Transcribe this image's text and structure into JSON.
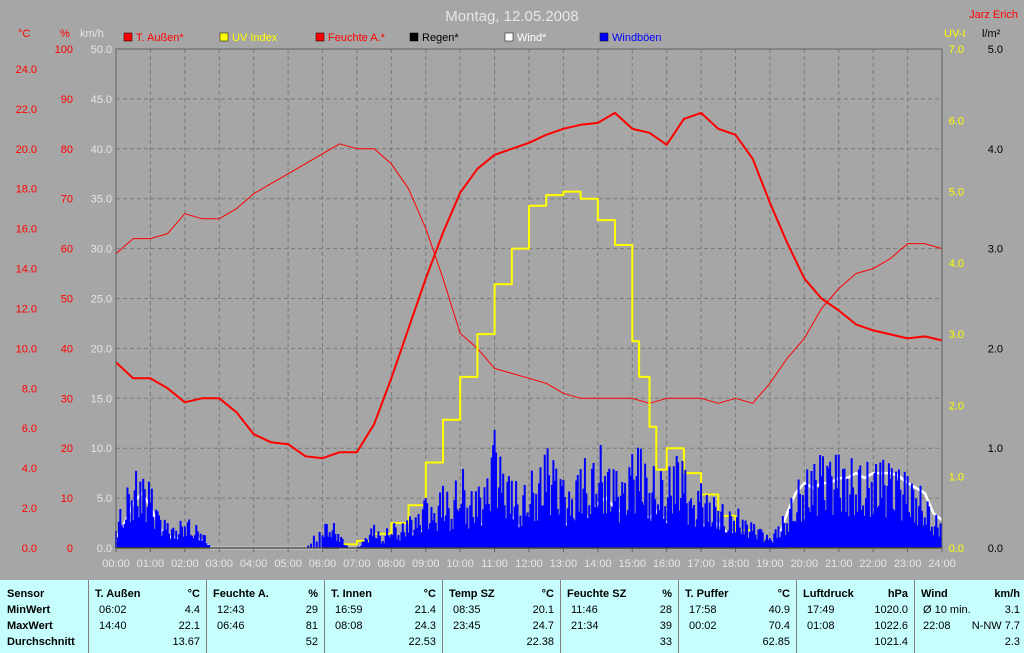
{
  "header": {
    "date_title": "Montag, 12.05.2008",
    "author": "Jarz Erich"
  },
  "axis_units": {
    "temp": "°C",
    "humidity": "%",
    "wind": "km/h",
    "uv": "UV-I",
    "rain": "l/m²"
  },
  "colors": {
    "temp": "#ff0000",
    "humidity": "#ff0000",
    "uv": "#ffff00",
    "rain": "#000000",
    "wind": "#ffffff",
    "gust": "#0000ff",
    "plot_bg": "#a6a6a6",
    "grid": "#7a7a7a",
    "stats_bg": "#c6fdfd"
  },
  "chart_data": {
    "type": "line",
    "title": "Montag, 12.05.2008",
    "x_ticks": [
      "00:00",
      "01:00",
      "02:00",
      "03:00",
      "04:00",
      "05:00",
      "06:00",
      "07:00",
      "08:00",
      "09:00",
      "10:00",
      "11:00",
      "12:00",
      "13:00",
      "14:00",
      "15:00",
      "16:00",
      "17:00",
      "18:00",
      "19:00",
      "20:00",
      "21:00",
      "22:00",
      "23:00",
      "24:00"
    ],
    "axes": {
      "temp": {
        "unit": "°C",
        "range": [
          0,
          25
        ],
        "ticks": [
          "0.0",
          "2.0",
          "4.0",
          "6.0",
          "8.0",
          "10.0",
          "12.0",
          "14.0",
          "16.0",
          "18.0",
          "20.0",
          "22.0",
          "24.0"
        ]
      },
      "humidity": {
        "unit": "%",
        "range": [
          0,
          100
        ],
        "ticks": [
          "0",
          "10",
          "20",
          "30",
          "40",
          "50",
          "60",
          "70",
          "80",
          "90",
          "100"
        ]
      },
      "wind": {
        "unit": "km/h",
        "range": [
          0,
          50
        ],
        "ticks": [
          "0.0",
          "5.0",
          "10.0",
          "15.0",
          "20.0",
          "25.0",
          "30.0",
          "35.0",
          "40.0",
          "45.0",
          "50.0"
        ]
      },
      "uv": {
        "unit": "UV-I",
        "range": [
          0,
          7
        ],
        "ticks": [
          "0.0",
          "1.0",
          "2.0",
          "3.0",
          "4.0",
          "5.0",
          "6.0",
          "7.0"
        ]
      },
      "rain": {
        "unit": "l/m²",
        "range": [
          0,
          5
        ],
        "ticks": [
          "0.0",
          "1.0",
          "2.0",
          "3.0",
          "4.0",
          "5.0"
        ]
      }
    },
    "legend": [
      {
        "label": "T. Außen*",
        "color": "#ff0000"
      },
      {
        "label": "UV Index",
        "color": "#ffff00"
      },
      {
        "label": "Feuchte A.*",
        "color": "#ff0000"
      },
      {
        "label": "Regen*",
        "color": "#000000"
      },
      {
        "label": "Wind*",
        "color": "#ffffff"
      },
      {
        "label": "Windböen",
        "color": "#0000ff"
      }
    ],
    "series": [
      {
        "name": "T. Außen*",
        "axis": "temp",
        "x_hours": [
          0,
          0.5,
          1,
          1.5,
          2,
          2.5,
          3,
          3.5,
          4,
          4.5,
          5,
          5.5,
          6,
          6.5,
          7,
          7.5,
          8,
          8.5,
          9,
          9.5,
          10,
          10.5,
          11,
          11.5,
          12,
          12.5,
          13,
          13.5,
          14,
          14.5,
          15,
          15.5,
          16,
          16.5,
          17,
          17.5,
          18,
          18.5,
          19,
          19.5,
          20,
          20.5,
          21,
          21.5,
          22,
          22.5,
          23,
          23.5,
          24
        ],
        "y": [
          9.3,
          8.5,
          8.5,
          8.0,
          7.3,
          7.5,
          7.5,
          6.8,
          5.7,
          5.3,
          5.2,
          4.6,
          4.5,
          4.8,
          4.8,
          6.2,
          8.5,
          11.0,
          13.5,
          15.8,
          17.8,
          19.0,
          19.7,
          20.0,
          20.3,
          20.7,
          21.0,
          21.2,
          21.3,
          21.8,
          21.0,
          20.8,
          20.2,
          21.5,
          21.8,
          21.0,
          20.7,
          19.5,
          17.3,
          15.3,
          13.5,
          12.5,
          11.9,
          11.2,
          10.9,
          10.7,
          10.5,
          10.6,
          10.4
        ]
      },
      {
        "name": "Feuchte A.*",
        "axis": "humidity",
        "x_hours": [
          0,
          0.5,
          1,
          1.5,
          2,
          2.5,
          3,
          3.5,
          4,
          4.5,
          5,
          5.5,
          6,
          6.5,
          7,
          7.5,
          8,
          8.5,
          9,
          9.5,
          10,
          10.5,
          11,
          11.5,
          12,
          12.5,
          13,
          13.5,
          14,
          14.5,
          15,
          15.5,
          16,
          16.5,
          17,
          17.5,
          18,
          18.5,
          19,
          19.5,
          20,
          20.5,
          21,
          21.5,
          22,
          22.5,
          23,
          23.5,
          24
        ],
        "y": [
          59,
          62,
          62,
          63,
          67,
          66,
          66,
          68,
          71,
          73,
          75,
          77,
          79,
          81,
          80,
          80,
          77,
          72,
          64,
          54,
          43,
          40,
          36,
          35,
          34,
          33,
          31,
          30,
          30,
          30,
          30,
          29,
          30,
          30,
          30,
          29,
          30,
          29,
          33,
          38,
          42,
          48,
          52,
          55,
          56,
          58,
          61,
          61,
          60
        ]
      },
      {
        "name": "UV Index",
        "axis": "uv",
        "x_hours": [
          0,
          5.5,
          6,
          6.5,
          7,
          7.5,
          8,
          8.5,
          9,
          9.5,
          10,
          10.5,
          11,
          11.5,
          12,
          12.5,
          13,
          13.5,
          14,
          14.5,
          15,
          15.2,
          15.5,
          15.7,
          16,
          16.5,
          17,
          17.5,
          18,
          18.5,
          19,
          19.5,
          20,
          24
        ],
        "y": [
          0,
          0,
          0.02,
          0.05,
          0.1,
          0.2,
          0.35,
          0.6,
          1.2,
          1.8,
          2.4,
          3.0,
          3.7,
          4.2,
          4.8,
          4.95,
          5.0,
          4.9,
          4.6,
          4.25,
          2.9,
          2.4,
          1.7,
          1.1,
          1.4,
          1.05,
          0.75,
          0.45,
          0.25,
          0.1,
          0.05,
          0,
          0,
          0
        ]
      },
      {
        "name": "Wind*",
        "axis": "wind",
        "x_hours": [
          0,
          0.25,
          0.5,
          0.75,
          1,
          1.25,
          1.5,
          1.75,
          2,
          2.25,
          2.5,
          2.75,
          3,
          3.5,
          4,
          4.5,
          5,
          5.5,
          6,
          6.25,
          6.5,
          6.75,
          7,
          7.25,
          7.5,
          7.75,
          8,
          8.25,
          8.5,
          8.75,
          9,
          9.25,
          9.5,
          9.75,
          10,
          10.25,
          10.5,
          10.75,
          11,
          11.25,
          11.5,
          11.75,
          12,
          12.25,
          12.5,
          12.75,
          13,
          13.25,
          13.5,
          13.75,
          14,
          14.25,
          14.5,
          14.75,
          15,
          15.25,
          15.5,
          15.75,
          16,
          16.25,
          16.5,
          16.75,
          17,
          17.25,
          17.5,
          17.75,
          18,
          18.25,
          18.5,
          18.75,
          19,
          19.25,
          19.5,
          19.75,
          20,
          20.25,
          20.5,
          20.75,
          21,
          21.25,
          21.5,
          21.75,
          22,
          22.25,
          22.5,
          22.75,
          23,
          23.25,
          23.5,
          23.75,
          24
        ],
        "y": [
          1.0,
          2.5,
          4.5,
          5.5,
          4.2,
          2.0,
          1.2,
          1.0,
          0.5,
          1.0,
          0.8,
          0,
          0,
          0,
          0,
          0,
          0,
          0,
          0,
          0.5,
          0,
          0,
          0,
          0.3,
          0.5,
          0.2,
          0.8,
          0.5,
          1.0,
          1.8,
          1.5,
          1.0,
          2.0,
          1.5,
          2.5,
          1.5,
          2.8,
          1.8,
          3.5,
          2.5,
          3.2,
          2.0,
          2.6,
          2.5,
          3.5,
          3.0,
          2.5,
          2.0,
          3.5,
          3.0,
          4.5,
          5.0,
          4.0,
          3.5,
          2.5,
          3.5,
          3.0,
          3.8,
          2.5,
          3.5,
          2.8,
          1.5,
          2.5,
          1.8,
          2.5,
          1.5,
          1.5,
          1.0,
          0.8,
          0.6,
          0.2,
          1.0,
          3.5,
          5.5,
          6.5,
          6.0,
          6.5,
          6.5,
          7.0,
          7.0,
          7.5,
          7.0,
          7.5,
          7.5,
          7.5,
          7.2,
          6.5,
          6.0,
          5.5,
          3.5,
          2.8
        ]
      },
      {
        "name": "Windböen",
        "axis": "wind",
        "x_hours": [
          0,
          0.25,
          0.5,
          0.75,
          1,
          1.25,
          1.5,
          1.75,
          2,
          2.25,
          2.5,
          2.75,
          3,
          3.5,
          4,
          4.5,
          5,
          5.5,
          6,
          6.25,
          6.5,
          6.75,
          7,
          7.25,
          7.5,
          7.75,
          8,
          8.25,
          8.5,
          8.75,
          9,
          9.25,
          9.5,
          9.75,
          10,
          10.25,
          10.5,
          10.75,
          11,
          11.25,
          11.5,
          11.75,
          12,
          12.25,
          12.5,
          12.75,
          13,
          13.25,
          13.5,
          13.75,
          14,
          14.25,
          14.5,
          14.75,
          15,
          15.25,
          15.5,
          15.75,
          16,
          16.25,
          16.5,
          16.75,
          17,
          17.25,
          17.5,
          17.75,
          18,
          18.25,
          18.5,
          18.75,
          19,
          19.25,
          19.5,
          19.75,
          20,
          20.25,
          20.5,
          20.75,
          21,
          21.25,
          21.5,
          21.75,
          22,
          22.25,
          22.5,
          22.75,
          23,
          23.25,
          23.5,
          23.75,
          24
        ],
        "y": [
          2.5,
          5.5,
          8.0,
          7.5,
          6.5,
          3.5,
          2.5,
          2.0,
          3.5,
          2.5,
          2.0,
          0,
          0,
          0,
          0,
          0,
          0,
          0,
          2.5,
          3.0,
          1.5,
          0,
          0,
          1.0,
          2.5,
          1.0,
          3.0,
          2.0,
          3.5,
          3.0,
          5.5,
          3.5,
          7.0,
          4.5,
          9.5,
          5.5,
          6.5,
          6.0,
          12.5,
          7.5,
          8.0,
          5.5,
          8.0,
          7.5,
          10.5,
          8.5,
          7.0,
          5.0,
          10.0,
          8.0,
          11.0,
          9.0,
          8.0,
          6.5,
          9.5,
          10.5,
          7.5,
          9.0,
          7.0,
          10.5,
          8.5,
          4.5,
          6.5,
          5.0,
          5.5,
          3.5,
          4.5,
          3.0,
          2.5,
          2.0,
          1.0,
          2.5,
          4.0,
          6.5,
          8.0,
          8.5,
          9.5,
          9.0,
          9.5,
          8.5,
          9.5,
          8.5,
          9.0,
          9.0,
          8.5,
          8.0,
          7.5,
          6.5,
          6.0,
          3.5,
          3.0
        ]
      },
      {
        "name": "Regen*",
        "axis": "rain",
        "x_hours": [
          0,
          24
        ],
        "y": [
          0,
          0
        ]
      }
    ]
  },
  "stats": {
    "row_labels": [
      "Sensor",
      "MinWert",
      "MaxWert",
      "Durchschnitt"
    ],
    "columns": [
      {
        "name": "T. Außen",
        "unit": "°C",
        "min_time": "06:02",
        "min_val": "4.4",
        "max_time": "14:40",
        "max_val": "22.1",
        "avg": "13.67"
      },
      {
        "name": "Feuchte A.",
        "unit": "%",
        "min_time": "12:43",
        "min_val": "29",
        "max_time": "06:46",
        "max_val": "81",
        "avg": "52"
      },
      {
        "name": "T. Innen",
        "unit": "°C",
        "min_time": "16:59",
        "min_val": "21.4",
        "max_time": "08:08",
        "max_val": "24.3",
        "avg": "22.53"
      },
      {
        "name": "Temp SZ",
        "unit": "°C",
        "min_time": "08:35",
        "min_val": "20.1",
        "max_time": "23:45",
        "max_val": "24.7",
        "avg": "22.38"
      },
      {
        "name": "Feuchte SZ",
        "unit": "%",
        "min_time": "11:46",
        "min_val": "28",
        "max_time": "21:34",
        "max_val": "39",
        "avg": "33"
      },
      {
        "name": "T. Puffer",
        "unit": "°C",
        "min_time": "17:58",
        "min_val": "40.9",
        "max_time": "00:02",
        "max_val": "70.4",
        "avg": "62.85"
      },
      {
        "name": "Luftdruck",
        "unit": "hPa",
        "min_time": "17:49",
        "min_val": "1020.0",
        "max_time": "01:08",
        "max_val": "1022.6",
        "avg": "1021.4"
      },
      {
        "name": "Wind",
        "unit": "km/h",
        "min_time": "Ø 10 min.",
        "min_val": "3.1",
        "max_time": "22:08",
        "max_val": "N-NW 7.7",
        "avg": "2.3"
      }
    ]
  }
}
